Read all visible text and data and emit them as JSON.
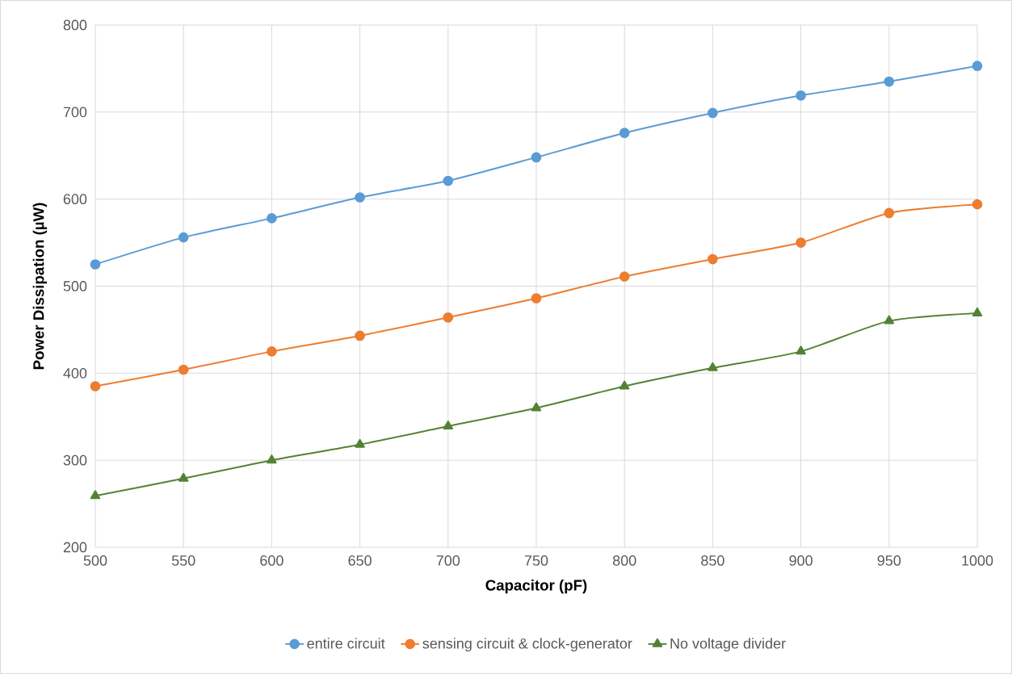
{
  "chart_data": {
    "type": "line",
    "xlabel": "Capacitor (pF)",
    "ylabel": "Power Dissipation (µW)",
    "x": [
      500,
      550,
      600,
      650,
      700,
      750,
      800,
      850,
      900,
      950,
      1000
    ],
    "series": [
      {
        "name": "entire circuit",
        "color": "#5b9bd5",
        "marker": "circle",
        "values": [
          525,
          556,
          578,
          602,
          621,
          648,
          676,
          699,
          719,
          735,
          753
        ]
      },
      {
        "name": "sensing circuit & clock-generator",
        "color": "#ed7d31",
        "marker": "circle",
        "values": [
          385,
          404,
          425,
          443,
          464,
          486,
          511,
          531,
          550,
          584,
          594
        ]
      },
      {
        "name": "No voltage divider",
        "color": "#548235",
        "marker": "triangle",
        "values": [
          259,
          279,
          300,
          318,
          339,
          360,
          385,
          406,
          425,
          460,
          469
        ]
      }
    ],
    "xlim": [
      500,
      1000
    ],
    "xticks": [
      500,
      550,
      600,
      650,
      700,
      750,
      800,
      850,
      900,
      950,
      1000
    ],
    "ylim": [
      200,
      800
    ],
    "yticks": [
      200,
      300,
      400,
      500,
      600,
      700,
      800
    ],
    "grid": true,
    "legend": "bottom",
    "line_style": "solid"
  }
}
